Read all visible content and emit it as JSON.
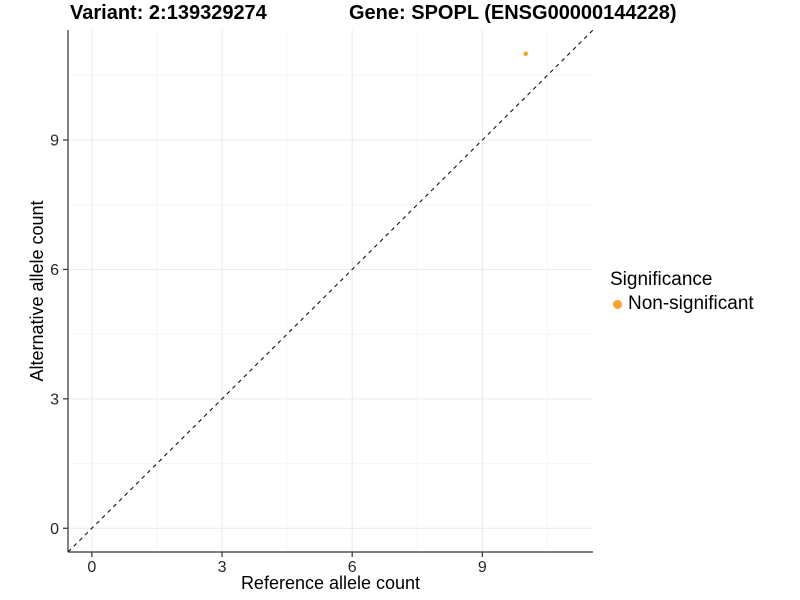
{
  "header": {
    "variant_title": "Variant: 2:139329274",
    "gene_title": "Gene: SPOPL (ENSG00000144228)"
  },
  "legend": {
    "title": "Significance",
    "items": [
      {
        "label": "Non-significant",
        "color": "#FAA12E",
        "marker": "circle"
      }
    ]
  },
  "chart_data": {
    "type": "scatter",
    "titles": [
      "Variant: 2:139329274",
      "Gene: SPOPL (ENSG00000144228)"
    ],
    "xlabel": "Reference allele count",
    "ylabel": "Alternative allele count",
    "xlim": [
      -0.55,
      11.55
    ],
    "ylim": [
      -0.55,
      11.55
    ],
    "x_ticks": [
      0,
      3,
      6,
      9
    ],
    "y_ticks": [
      0,
      3,
      6,
      9
    ],
    "x_minor_ticks": [
      1.5,
      4.5,
      7.5,
      10.5
    ],
    "y_minor_ticks": [
      1.5,
      4.5,
      7.5,
      10.5
    ],
    "grid": {
      "show": true,
      "major_color": "#E9E9E9",
      "minor_color": "#F4F4F4"
    },
    "identity_line": {
      "style": "dashed",
      "color": "#111111",
      "slope": 1,
      "intercept": 0
    },
    "series": [
      {
        "name": "Non-significant",
        "color": "#FAA12E",
        "points": [
          {
            "x": 10,
            "y": 11
          }
        ]
      }
    ],
    "legend_position": "right",
    "legend_title": "Significance"
  },
  "colors": {
    "axis": "#333333",
    "tick_label": "#262626",
    "background": "#FFFFFF",
    "point": "#FAA12E"
  }
}
